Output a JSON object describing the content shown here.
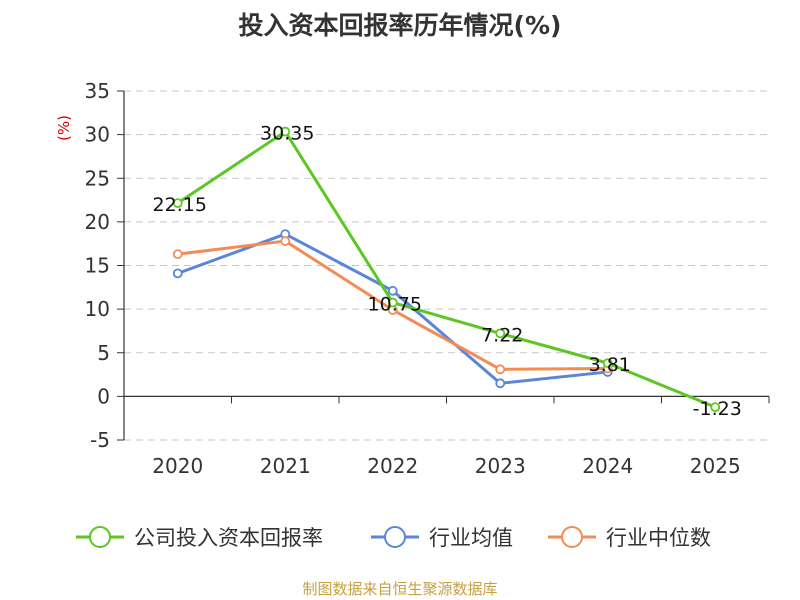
{
  "chart_data": {
    "type": "line",
    "title": "投入资本回报率历年情况(%)",
    "ylabel": "(%)",
    "categories": [
      "2020",
      "2021",
      "2022",
      "2023",
      "2024",
      "2025"
    ],
    "ylim": [
      -5,
      35
    ],
    "yticks": [
      -5,
      0,
      5,
      10,
      15,
      20,
      25,
      30,
      35
    ],
    "grid": true,
    "legend_position": "bottom",
    "series": [
      {
        "name": "公司投入资本回报率",
        "color": "#5cc623",
        "values": [
          22.15,
          30.35,
          10.75,
          7.22,
          3.81,
          -1.23
        ],
        "labels": [
          "22.15",
          "30.35",
          "10.75",
          "7.22",
          "3.81",
          "-1.23"
        ]
      },
      {
        "name": "行业均值",
        "color": "#5b86d8",
        "values": [
          14.1,
          18.6,
          12.1,
          1.5,
          2.8,
          null
        ]
      },
      {
        "name": "行业中位数",
        "color": "#f28c55",
        "values": [
          16.3,
          17.8,
          9.9,
          3.1,
          3.2,
          null
        ]
      }
    ]
  },
  "source": "制图数据来自恒生聚源数据库"
}
